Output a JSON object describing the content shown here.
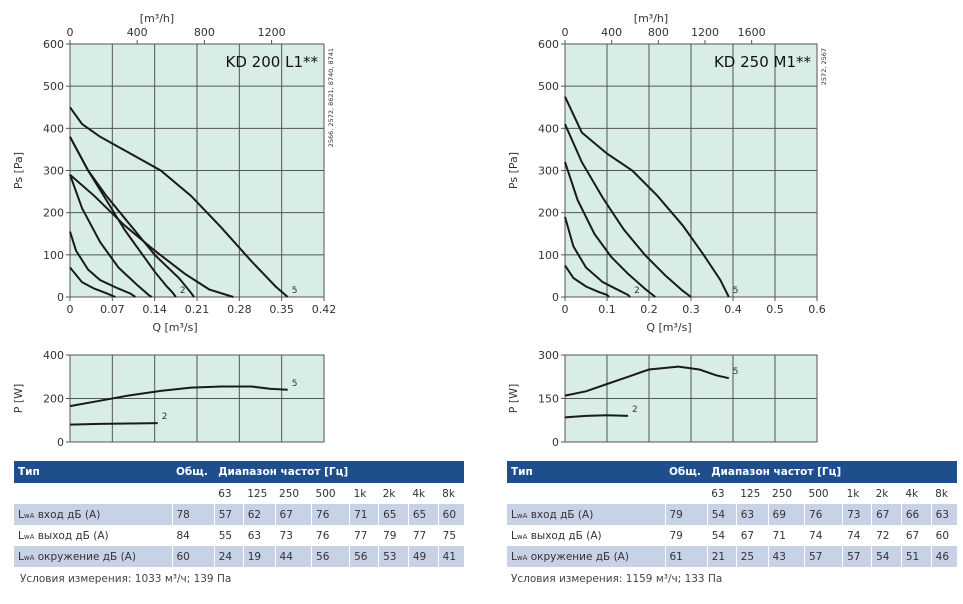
{
  "colors": {
    "plot_bg": "#d8ede8",
    "grid": "#555555",
    "curve": "#1a1a1a",
    "header": "#1f4e8c",
    "band": "#c7d2e6"
  },
  "chart_data": [
    {
      "type": "line",
      "id": "left-pressure",
      "title": "KD 200 L1**",
      "side_note": "2566, 2572, 8621, 8740, 8741",
      "xlabel": "Q [m³/s]",
      "ylabel": "Ps [Pa]",
      "x2label": "[m³/h]",
      "xlim": [
        0,
        0.42
      ],
      "ylim": [
        0,
        600
      ],
      "x2lim": [
        0,
        1512
      ],
      "xticks": [
        "0",
        "0.07",
        "0.14",
        "0.21",
        "0.28",
        "0.35",
        "0.42"
      ],
      "yticks": [
        "0",
        "100",
        "200",
        "300",
        "400",
        "500",
        "600"
      ],
      "x2ticks": [
        {
          "v": 0,
          "label": "0"
        },
        {
          "v": 400,
          "label": "400"
        },
        {
          "v": 800,
          "label": "800"
        },
        {
          "v": 1200,
          "label": "1200"
        }
      ],
      "grid": true,
      "series": [
        {
          "name": "2",
          "label": "2",
          "points": [
            [
              0,
              380
            ],
            [
              0.03,
              300
            ],
            [
              0.06,
              230
            ],
            [
              0.09,
              160
            ],
            [
              0.12,
              100
            ],
            [
              0.14,
              60
            ],
            [
              0.16,
              25
            ],
            [
              0.17,
              10
            ],
            [
              0.175,
              0
            ]
          ]
        },
        {
          "name": "",
          "label": "",
          "points": [
            [
              0,
              290
            ],
            [
              0.02,
              210
            ],
            [
              0.05,
              130
            ],
            [
              0.08,
              70
            ],
            [
              0.11,
              30
            ],
            [
              0.13,
              5
            ],
            [
              0.135,
              0
            ]
          ]
        },
        {
          "name": "",
          "label": "",
          "points": [
            [
              0,
              155
            ],
            [
              0.01,
              110
            ],
            [
              0.03,
              65
            ],
            [
              0.05,
              40
            ],
            [
              0.08,
              20
            ],
            [
              0.1,
              8
            ],
            [
              0.108,
              0
            ]
          ]
        },
        {
          "name": "",
          "label": "",
          "points": [
            [
              0,
              70
            ],
            [
              0.02,
              35
            ],
            [
              0.04,
              20
            ],
            [
              0.06,
              9
            ],
            [
              0.075,
              0
            ]
          ]
        },
        {
          "name": "",
          "label": "",
          "points": [
            [
              0,
              380
            ],
            [
              0.03,
              300
            ],
            [
              0.06,
              240
            ],
            [
              0.1,
              170
            ],
            [
              0.14,
              100
            ],
            [
              0.18,
              45
            ],
            [
              0.2,
              10
            ],
            [
              0.205,
              0
            ]
          ]
        },
        {
          "name": "5",
          "label": "5",
          "points": [
            [
              0,
              450
            ],
            [
              0.02,
              410
            ],
            [
              0.05,
              380
            ],
            [
              0.1,
              340
            ],
            [
              0.15,
              300
            ],
            [
              0.2,
              240
            ],
            [
              0.25,
              165
            ],
            [
              0.3,
              85
            ],
            [
              0.34,
              25
            ],
            [
              0.36,
              0
            ]
          ]
        },
        {
          "name": "",
          "label": "",
          "points": [
            [
              0,
              290
            ],
            [
              0.04,
              240
            ],
            [
              0.09,
              170
            ],
            [
              0.14,
              110
            ],
            [
              0.19,
              55
            ],
            [
              0.23,
              18
            ],
            [
              0.27,
              0
            ]
          ]
        }
      ]
    },
    {
      "type": "line",
      "id": "left-power",
      "ylabel": "P [W]",
      "xlim": [
        0,
        0.42
      ],
      "ylim": [
        0,
        400
      ],
      "yticks": [
        "0",
        "200",
        "400"
      ],
      "grid": true,
      "series": [
        {
          "name": "2",
          "label": "2",
          "points": [
            [
              0,
              80
            ],
            [
              0.05,
              83
            ],
            [
              0.1,
              85
            ],
            [
              0.145,
              87
            ]
          ]
        },
        {
          "name": "5",
          "label": "5",
          "points": [
            [
              0,
              165
            ],
            [
              0.05,
              190
            ],
            [
              0.1,
              215
            ],
            [
              0.15,
              235
            ],
            [
              0.2,
              250
            ],
            [
              0.25,
              255
            ],
            [
              0.3,
              255
            ],
            [
              0.33,
              245
            ],
            [
              0.36,
              240
            ]
          ]
        }
      ]
    },
    {
      "type": "line",
      "id": "right-pressure",
      "title": "KD 250 M1**",
      "side_note": "2572, 2567",
      "xlabel": "Q [m³/s]",
      "ylabel": "Ps [Pa]",
      "x2label": "[m³/h]",
      "xlim": [
        0,
        0.6
      ],
      "ylim": [
        0,
        600
      ],
      "x2lim": [
        0,
        2160
      ],
      "xticks": [
        "0",
        "0.1",
        "0.2",
        "0.3",
        "0.4",
        "0.5",
        "0.6"
      ],
      "yticks": [
        "0",
        "100",
        "200",
        "300",
        "400",
        "500",
        "600"
      ],
      "x2ticks": [
        {
          "v": 0,
          "label": "0"
        },
        {
          "v": 400,
          "label": "400"
        },
        {
          "v": 800,
          "label": "800"
        },
        {
          "v": 1200,
          "label": "1200"
        },
        {
          "v": 1600,
          "label": "1600"
        }
      ],
      "grid": true,
      "series": [
        {
          "name": "",
          "label": "",
          "points": [
            [
              0,
              75
            ],
            [
              0.02,
              45
            ],
            [
              0.05,
              25
            ],
            [
              0.08,
              12
            ],
            [
              0.1,
              5
            ],
            [
              0.105,
              0
            ]
          ]
        },
        {
          "name": "2",
          "label": "2",
          "points": [
            [
              0,
              190
            ],
            [
              0.02,
              120
            ],
            [
              0.05,
              70
            ],
            [
              0.09,
              35
            ],
            [
              0.13,
              15
            ],
            [
              0.15,
              5
            ],
            [
              0.155,
              0
            ]
          ]
        },
        {
          "name": "",
          "label": "",
          "points": [
            [
              0,
              320
            ],
            [
              0.03,
              230
            ],
            [
              0.07,
              150
            ],
            [
              0.11,
              95
            ],
            [
              0.15,
              55
            ],
            [
              0.19,
              20
            ],
            [
              0.215,
              0
            ]
          ]
        },
        {
          "name": "",
          "label": "",
          "points": [
            [
              0,
              410
            ],
            [
              0.04,
              320
            ],
            [
              0.09,
              235
            ],
            [
              0.14,
              160
            ],
            [
              0.19,
              100
            ],
            [
              0.24,
              50
            ],
            [
              0.28,
              15
            ],
            [
              0.3,
              0
            ]
          ]
        },
        {
          "name": "5",
          "label": "5",
          "points": [
            [
              0,
              475
            ],
            [
              0.04,
              390
            ],
            [
              0.1,
              340
            ],
            [
              0.16,
              300
            ],
            [
              0.22,
              240
            ],
            [
              0.28,
              170
            ],
            [
              0.33,
              100
            ],
            [
              0.37,
              40
            ],
            [
              0.39,
              0
            ]
          ]
        }
      ]
    },
    {
      "type": "line",
      "id": "right-power",
      "ylabel": "P [W]",
      "xlim": [
        0,
        0.6
      ],
      "ylim": [
        0,
        300
      ],
      "yticks": [
        "0",
        "150",
        "300"
      ],
      "grid": true,
      "series": [
        {
          "name": "2",
          "label": "2",
          "points": [
            [
              0,
              85
            ],
            [
              0.05,
              90
            ],
            [
              0.1,
              92
            ],
            [
              0.15,
              90
            ]
          ]
        },
        {
          "name": "5",
          "label": "5",
          "points": [
            [
              0,
              160
            ],
            [
              0.05,
              175
            ],
            [
              0.1,
              200
            ],
            [
              0.15,
              225
            ],
            [
              0.2,
              250
            ],
            [
              0.27,
              260
            ],
            [
              0.32,
              250
            ],
            [
              0.36,
              230
            ],
            [
              0.39,
              220
            ]
          ]
        }
      ]
    }
  ],
  "tables": [
    {
      "head": {
        "type": "Тип",
        "total": "Общ.",
        "range": "Диапазон частот [Гц]"
      },
      "freqs": [
        "63",
        "125",
        "250",
        "500",
        "1k",
        "2k",
        "4k",
        "8k"
      ],
      "rows": [
        {
          "label_prefix": "L",
          "label_sub": "wA",
          "label_rest": " вход дБ (A)",
          "total": "78",
          "values": [
            "57",
            "62",
            "67",
            "76",
            "71",
            "65",
            "65",
            "60"
          ]
        },
        {
          "label_prefix": "L",
          "label_sub": "wA",
          "label_rest": " выход дБ (A)",
          "total": "84",
          "values": [
            "55",
            "63",
            "73",
            "76",
            "77",
            "79",
            "77",
            "75"
          ]
        },
        {
          "label_prefix": "L",
          "label_sub": "wA",
          "label_rest": " окружение дБ (A)",
          "total": "60",
          "values": [
            "24",
            "19",
            "44",
            "56",
            "56",
            "53",
            "49",
            "41"
          ]
        }
      ],
      "conditions": "Условия измерения: 1033 м³/ч; 139 Па"
    },
    {
      "head": {
        "type": "Тип",
        "total": "Общ.",
        "range": "Диапазон частот [Гц]"
      },
      "freqs": [
        "63",
        "125",
        "250",
        "500",
        "1k",
        "2k",
        "4k",
        "8k"
      ],
      "rows": [
        {
          "label_prefix": "L",
          "label_sub": "wA",
          "label_rest": " вход дБ (A)",
          "total": "79",
          "values": [
            "54",
            "63",
            "69",
            "76",
            "73",
            "67",
            "66",
            "63"
          ]
        },
        {
          "label_prefix": "L",
          "label_sub": "wA",
          "label_rest": " выход дБ (A)",
          "total": "79",
          "values": [
            "54",
            "67",
            "71",
            "74",
            "74",
            "72",
            "67",
            "60"
          ]
        },
        {
          "label_prefix": "L",
          "label_sub": "wA",
          "label_rest": " окружение дБ (A)",
          "total": "61",
          "values": [
            "21",
            "25",
            "43",
            "57",
            "57",
            "54",
            "51",
            "46"
          ]
        }
      ],
      "conditions": "Условия измерения: 1159 м³/ч; 133 Па"
    }
  ]
}
